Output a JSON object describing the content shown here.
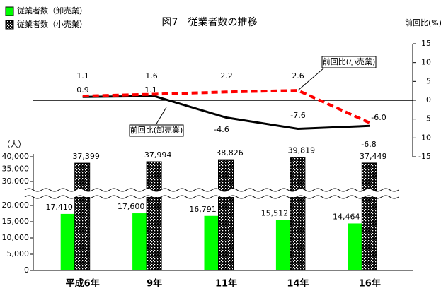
{
  "chart_data": {
    "type": "bar",
    "title": "図7　従業者数の推移",
    "y_label": "（人）",
    "y2_label": "前回比(%)",
    "categories": [
      "平成6年",
      "9年",
      "11年",
      "14年",
      "16年"
    ],
    "ylim": [
      0,
      40000
    ],
    "ybreak": [
      20000,
      30000
    ],
    "yticks": [
      {
        "value": 0,
        "label": "0"
      },
      {
        "value": 5000,
        "label": "5,000"
      },
      {
        "value": 10000,
        "label": "10,000"
      },
      {
        "value": 15000,
        "label": "15,000"
      },
      {
        "value": 20000,
        "label": "20,000"
      },
      {
        "value": 30000,
        "label": "30,000"
      },
      {
        "value": 35000,
        "label": "35,000"
      },
      {
        "value": 40000,
        "label": "40,000"
      }
    ],
    "y2lim": [
      -15,
      15
    ],
    "y2ticks": [
      -15,
      -10,
      -5,
      0,
      5,
      10,
      15
    ],
    "series": [
      {
        "name": "従業者数（卸売業）",
        "type": "bar",
        "color": "#00ff00",
        "values": [
          17410,
          17600,
          16791,
          15512,
          14464
        ],
        "value_labels": [
          "17,410",
          "17,600",
          "16,791",
          "15,512",
          "14,464"
        ]
      },
      {
        "name": "従業者数（小売業）",
        "type": "bar",
        "color": "#000000",
        "pattern": "dots",
        "values": [
          37399,
          37994,
          38826,
          39819,
          37449
        ],
        "value_labels": [
          "37,399",
          "37,994",
          "38,826",
          "39,819",
          "37,449"
        ]
      },
      {
        "name": "前回比(卸売業)",
        "type": "line",
        "axis": "y2",
        "color": "#000000",
        "dashed": false,
        "values": [
          0.9,
          1.1,
          -4.6,
          -7.6,
          -6.8
        ],
        "value_labels": [
          "0.9",
          "1.1",
          "-4.6",
          "-7.6",
          "-6.8"
        ]
      },
      {
        "name": "前回比(小売業)",
        "type": "line",
        "axis": "y2",
        "color": "#ff0000",
        "dashed": true,
        "values": [
          1.1,
          1.6,
          2.2,
          2.6,
          -6.0
        ],
        "value_labels": [
          "1.1",
          "1.6",
          "2.2",
          "2.6",
          "-6.0"
        ]
      }
    ]
  }
}
